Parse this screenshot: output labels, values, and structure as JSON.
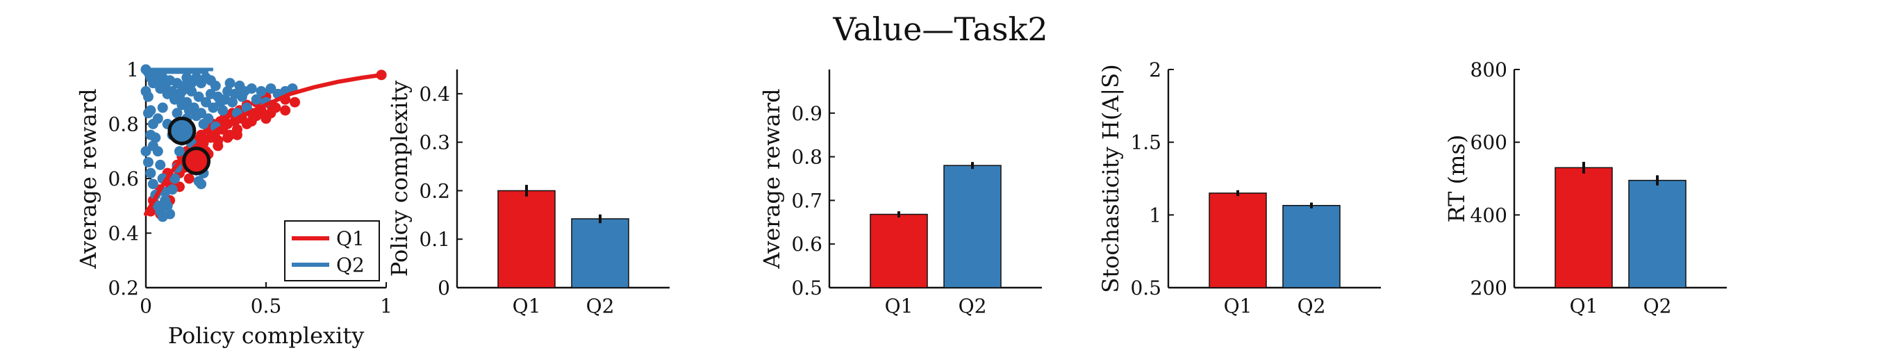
{
  "figure": {
    "title": "Value—Task2"
  },
  "colors": {
    "Q1": "#e41a1c",
    "Q2": "#377eb8",
    "axis": "#111111",
    "marker_edge": "#111111"
  },
  "chart_data": [
    {
      "type": "scatter",
      "xlabel": "Policy complexity",
      "ylabel": "Average reward",
      "xlim": [
        0,
        1
      ],
      "ylim": [
        0.2,
        1
      ],
      "xticks": [
        0,
        0.5,
        1
      ],
      "yticks": [
        0.2,
        0.4,
        0.6,
        0.8,
        1
      ],
      "xtick_labels": [
        "0",
        "0.5",
        "1"
      ],
      "ytick_labels": [
        "0.2",
        "0.4",
        "0.6",
        "0.8",
        "1"
      ],
      "legend": {
        "placement": "bottom-right",
        "entries": [
          "Q1",
          "Q2"
        ]
      },
      "series": [
        {
          "name": "Q1",
          "color": "#e41a1c",
          "curve": [
            [
              0.0,
              0.47
            ],
            [
              0.04,
              0.53
            ],
            [
              0.08,
              0.59
            ],
            [
              0.12,
              0.64
            ],
            [
              0.17,
              0.69
            ],
            [
              0.22,
              0.73
            ],
            [
              0.3,
              0.78
            ],
            [
              0.4,
              0.83
            ],
            [
              0.5,
              0.87
            ],
            [
              0.6,
              0.91
            ],
            [
              0.7,
              0.935
            ],
            [
              0.8,
              0.955
            ],
            [
              0.9,
              0.97
            ],
            [
              0.98,
              0.98
            ]
          ],
          "points": [
            [
              0.02,
              0.48
            ],
            [
              0.03,
              0.52
            ],
            [
              0.05,
              0.5
            ],
            [
              0.06,
              0.56
            ],
            [
              0.07,
              0.6
            ],
            [
              0.08,
              0.55
            ],
            [
              0.09,
              0.62
            ],
            [
              0.1,
              0.58
            ],
            [
              0.12,
              0.6
            ],
            [
              0.13,
              0.65
            ],
            [
              0.14,
              0.62
            ],
            [
              0.15,
              0.68
            ],
            [
              0.16,
              0.64
            ],
            [
              0.17,
              0.7
            ],
            [
              0.18,
              0.66
            ],
            [
              0.19,
              0.72
            ],
            [
              0.2,
              0.69
            ],
            [
              0.21,
              0.74
            ],
            [
              0.22,
              0.71
            ],
            [
              0.23,
              0.76
            ],
            [
              0.24,
              0.73
            ],
            [
              0.25,
              0.7
            ],
            [
              0.26,
              0.78
            ],
            [
              0.27,
              0.75
            ],
            [
              0.28,
              0.8
            ],
            [
              0.29,
              0.77
            ],
            [
              0.3,
              0.74
            ],
            [
              0.31,
              0.81
            ],
            [
              0.32,
              0.78
            ],
            [
              0.33,
              0.83
            ],
            [
              0.34,
              0.8
            ],
            [
              0.35,
              0.76
            ],
            [
              0.36,
              0.84
            ],
            [
              0.37,
              0.81
            ],
            [
              0.38,
              0.78
            ],
            [
              0.39,
              0.85
            ],
            [
              0.4,
              0.82
            ],
            [
              0.42,
              0.87
            ],
            [
              0.44,
              0.84
            ],
            [
              0.46,
              0.88
            ],
            [
              0.48,
              0.85
            ],
            [
              0.5,
              0.9
            ],
            [
              0.52,
              0.87
            ],
            [
              0.55,
              0.91
            ],
            [
              0.58,
              0.89
            ],
            [
              0.06,
              0.47
            ],
            [
              0.1,
              0.52
            ],
            [
              0.14,
              0.57
            ],
            [
              0.18,
              0.6
            ],
            [
              0.22,
              0.65
            ],
            [
              0.26,
              0.69
            ],
            [
              0.3,
              0.72
            ],
            [
              0.34,
              0.75
            ],
            [
              0.38,
              0.76
            ],
            [
              0.42,
              0.8
            ],
            [
              0.46,
              0.83
            ],
            [
              0.5,
              0.82
            ],
            [
              0.54,
              0.86
            ],
            [
              0.58,
              0.85
            ],
            [
              0.62,
              0.88
            ],
            [
              0.98,
              0.98
            ],
            [
              0.44,
              0.81
            ],
            [
              0.52,
              0.84
            ]
          ],
          "mean": [
            0.21,
            0.665
          ]
        },
        {
          "name": "Q2",
          "color": "#377eb8",
          "points": [
            [
              0.0,
              1.0
            ],
            [
              0.01,
              0.99
            ],
            [
              0.02,
              0.97
            ],
            [
              0.03,
              0.95
            ],
            [
              0.04,
              0.98
            ],
            [
              0.05,
              0.96
            ],
            [
              0.06,
              0.93
            ],
            [
              0.07,
              0.97
            ],
            [
              0.08,
              0.94
            ],
            [
              0.09,
              0.91
            ],
            [
              0.1,
              0.96
            ],
            [
              0.11,
              0.92
            ],
            [
              0.12,
              0.89
            ],
            [
              0.13,
              0.95
            ],
            [
              0.14,
              0.9
            ],
            [
              0.15,
              0.87
            ],
            [
              0.16,
              0.94
            ],
            [
              0.17,
              0.88
            ],
            [
              0.18,
              0.85
            ],
            [
              0.19,
              0.92
            ],
            [
              0.2,
              0.86
            ],
            [
              0.21,
              0.83
            ],
            [
              0.22,
              0.9
            ],
            [
              0.23,
              0.84
            ],
            [
              0.24,
              0.8
            ],
            [
              0.25,
              0.88
            ],
            [
              0.26,
              0.82
            ],
            [
              0.27,
              0.91
            ],
            [
              0.28,
              0.86
            ],
            [
              0.29,
              0.79
            ],
            [
              0.3,
              0.9
            ],
            [
              0.32,
              0.85
            ],
            [
              0.34,
              0.92
            ],
            [
              0.36,
              0.88
            ],
            [
              0.38,
              0.84
            ],
            [
              0.4,
              0.9
            ],
            [
              0.42,
              0.86
            ],
            [
              0.44,
              0.93
            ],
            [
              0.46,
              0.89
            ],
            [
              0.48,
              0.92
            ],
            [
              0.5,
              0.88
            ],
            [
              0.52,
              0.93
            ],
            [
              0.55,
              0.91
            ],
            [
              0.58,
              0.92
            ],
            [
              0.61,
              0.93
            ],
            [
              0.01,
              0.9
            ],
            [
              0.02,
              0.85
            ],
            [
              0.03,
              0.8
            ],
            [
              0.04,
              0.75
            ],
            [
              0.05,
              0.7
            ],
            [
              0.06,
              0.65
            ],
            [
              0.07,
              0.6
            ],
            [
              0.08,
              0.55
            ],
            [
              0.09,
              0.5
            ],
            [
              0.1,
              0.47
            ],
            [
              0.02,
              0.62
            ],
            [
              0.03,
              0.58
            ],
            [
              0.04,
              0.54
            ],
            [
              0.05,
              0.5
            ],
            [
              0.06,
              0.48
            ],
            [
              0.07,
              0.46
            ],
            [
              0.08,
              0.52
            ],
            [
              0.11,
              0.56
            ],
            [
              0.12,
              0.6
            ],
            [
              0.13,
              0.64
            ],
            [
              0.14,
              0.7
            ],
            [
              0.15,
              0.74
            ],
            [
              0.16,
              0.78
            ],
            [
              0.17,
              0.82
            ],
            [
              0.18,
              0.78
            ],
            [
              0.19,
              0.73
            ],
            [
              0.2,
              0.68
            ],
            [
              0.21,
              0.63
            ],
            [
              0.22,
              0.59
            ],
            [
              0.23,
              0.58
            ],
            [
              0.24,
              0.62
            ],
            [
              0.0,
              0.92
            ],
            [
              0.01,
              0.84
            ],
            [
              0.02,
              0.76
            ],
            [
              0.0,
              0.7
            ],
            [
              0.01,
              0.66
            ],
            [
              0.03,
              0.72
            ],
            [
              0.05,
              0.82
            ],
            [
              0.07,
              0.86
            ],
            [
              0.09,
              0.8
            ],
            [
              0.11,
              0.76
            ],
            [
              0.13,
              0.84
            ],
            [
              0.15,
              0.92
            ],
            [
              0.17,
              0.97
            ],
            [
              0.19,
              0.95
            ],
            [
              0.21,
              0.97
            ],
            [
              0.23,
              0.95
            ],
            [
              0.25,
              0.97
            ],
            [
              0.27,
              0.96
            ],
            [
              0.29,
              0.94
            ],
            [
              0.31,
              0.88
            ],
            [
              0.33,
              0.89
            ],
            [
              0.35,
              0.95
            ],
            [
              0.37,
              0.91
            ],
            [
              0.39,
              0.94
            ],
            [
              0.41,
              0.92
            ]
          ],
          "segments": [
            [
              [
                0.0,
                1.0
              ],
              [
                0.28,
                1.0
              ]
            ],
            [
              [
                0.0,
                0.99
              ],
              [
                0.26,
                0.99
              ]
            ]
          ],
          "mean": [
            0.15,
            0.775
          ]
        }
      ]
    },
    {
      "type": "bar",
      "categories": [
        "Q1",
        "Q2"
      ],
      "values": [
        0.2,
        0.142
      ],
      "errors": [
        0.012,
        0.009
      ],
      "ylabel": "Policy complexity",
      "xlabel": "",
      "ylim": [
        0,
        0.45
      ],
      "yticks": [
        0,
        0.1,
        0.2,
        0.3,
        0.4
      ],
      "ytick_labels": [
        "0",
        "0.1",
        "0.2",
        "0.3",
        "0.4"
      ]
    },
    {
      "type": "bar",
      "categories": [
        "Q1",
        "Q2"
      ],
      "values": [
        0.668,
        0.78
      ],
      "errors": [
        0.007,
        0.008
      ],
      "ylabel": "Average reward",
      "xlabel": "",
      "ylim": [
        0.5,
        1.0
      ],
      "yticks": [
        0.5,
        0.6,
        0.7,
        0.8,
        0.9
      ],
      "ytick_labels": [
        "0.5",
        "0.6",
        "0.7",
        "0.8",
        "0.9"
      ]
    },
    {
      "type": "bar",
      "categories": [
        "Q1",
        "Q2"
      ],
      "values": [
        1.15,
        1.065
      ],
      "errors": [
        0.02,
        0.02
      ],
      "ylabel": "Stochasticity H(A|S)",
      "xlabel": "",
      "ylim": [
        0.5,
        2.0
      ],
      "yticks": [
        0.5,
        1,
        1.5,
        2
      ],
      "ytick_labels": [
        "0.5",
        "1",
        "1.5",
        "2"
      ]
    },
    {
      "type": "bar",
      "categories": [
        "Q1",
        "Q2"
      ],
      "values": [
        530,
        495
      ],
      "errors": [
        16,
        14
      ],
      "ylabel": "RT (ms)",
      "xlabel": "",
      "ylim": [
        200,
        800
      ],
      "yticks": [
        200,
        400,
        600,
        800
      ],
      "ytick_labels": [
        "200",
        "400",
        "600",
        "800"
      ]
    }
  ]
}
